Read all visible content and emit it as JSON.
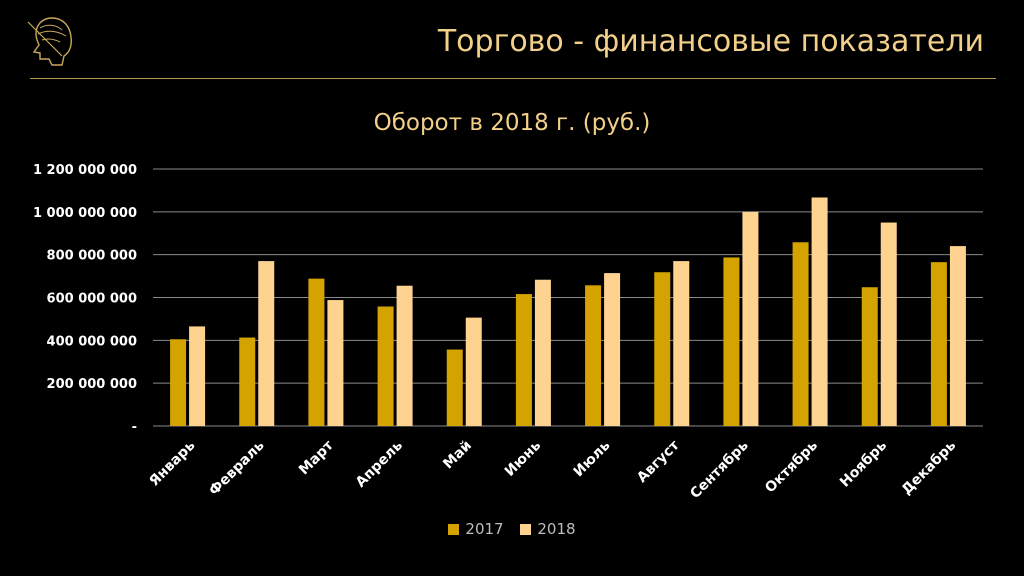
{
  "header": {
    "title": "Торгово - финансовые показатели",
    "logo_icon": "profile-head-icon"
  },
  "chart_data": {
    "type": "bar",
    "title": "Оборот в 2018 г. (руб.)",
    "categories": [
      "Январь",
      "Февраль",
      "Март",
      "Апрель",
      "Май",
      "Июнь",
      "Июль",
      "Август",
      "Сентябрь",
      "Октябрь",
      "Ноябрь",
      "Декабрь"
    ],
    "series": [
      {
        "name": "2017",
        "color": "#d4a300",
        "values": [
          405000000,
          413000000,
          688000000,
          558000000,
          357000000,
          616000000,
          657000000,
          718000000,
          787000000,
          858000000,
          648000000,
          765000000
        ]
      },
      {
        "name": "2018",
        "color": "#fdd38f",
        "values": [
          465000000,
          770000000,
          588000000,
          655000000,
          506000000,
          683000000,
          714000000,
          770000000,
          1000000000,
          1067000000,
          950000000,
          840000000
        ]
      }
    ],
    "y_ticks": [
      {
        "value": 0,
        "label": "-"
      },
      {
        "value": 200000000,
        "label": "200 000 000"
      },
      {
        "value": 400000000,
        "label": "400 000 000"
      },
      {
        "value": 600000000,
        "label": "600 000 000"
      },
      {
        "value": 800000000,
        "label": "800 000 000"
      },
      {
        "value": 1000000000,
        "label": "1 000 000 000"
      },
      {
        "value": 1200000000,
        "label": "1 200 000 000"
      }
    ],
    "ylim": [
      0,
      1200000000
    ],
    "grid": true,
    "legend": "bottom"
  }
}
